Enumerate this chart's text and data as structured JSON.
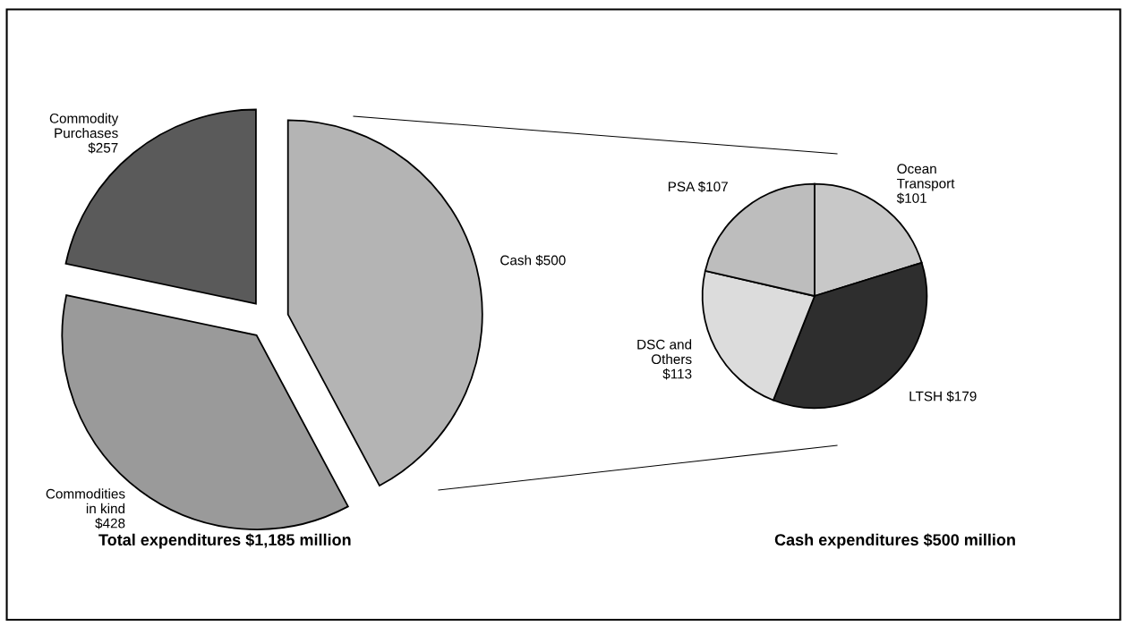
{
  "chart_data": [
    {
      "type": "pie",
      "title": "Total expenditures $1,185 million",
      "categories": [
        "Cash",
        "Commodities\nin kind",
        "Commodity\nPurchases"
      ],
      "values": [
        500,
        428,
        257
      ],
      "value_labels": [
        "$500",
        "$428",
        "$257"
      ],
      "colors": [
        "#b4b4b4",
        "#9a9a9a",
        "#5a5a5a"
      ]
    },
    {
      "type": "pie",
      "title": "Cash expenditures $500 million",
      "categories": [
        "Ocean\nTransport",
        "LTSH",
        "DSC and\nOthers",
        "PSA"
      ],
      "values": [
        101,
        179,
        113,
        107
      ],
      "value_labels": [
        "$101",
        "$179",
        "$113",
        "$107"
      ],
      "colors": [
        "#c8c8c8",
        "#2e2e2e",
        "#dcdcdc",
        "#bdbdbd"
      ]
    }
  ]
}
